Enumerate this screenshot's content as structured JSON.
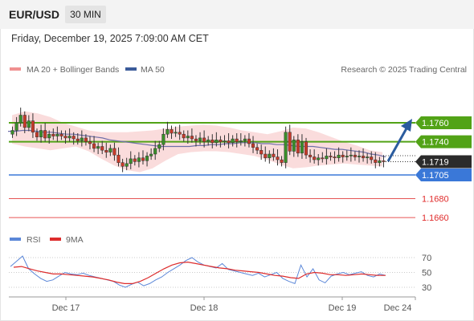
{
  "header": {
    "symbol": "EUR/USD",
    "interval": "30 MIN"
  },
  "datetime": "Friday, December 19, 2025 7:09:00 AM CET",
  "legend": {
    "ma20_label": "MA 20 + Bollinger Bands",
    "ma50_label": "MA 50",
    "copyright": "Research © 2025 Trading Central",
    "rsi_label": "RSI",
    "rsi_ma_label": "9MA"
  },
  "colors": {
    "resistance": "#52a317",
    "support": "#3a78d8",
    "target_low": "#e02b2b",
    "arrow": "#2b5c9e",
    "bollinger": "#f7c9c9",
    "ma50": "#6f6fa8",
    "candle_up": "#3a8f2a",
    "candle_down": "#c93a2a",
    "rsi": "#5b87d8",
    "rsi_ma": "#dd2c2c"
  },
  "price_levels": [
    {
      "label": "1.1760",
      "value": 1.176,
      "kind": "resistance"
    },
    {
      "label": "1.1740",
      "value": 1.174,
      "kind": "resistance"
    },
    {
      "label": "1.1719",
      "value": 1.1719,
      "kind": "current"
    },
    {
      "label": "1.1705",
      "value": 1.1705,
      "kind": "support"
    },
    {
      "label": "1.1680",
      "value": 1.168,
      "kind": "target"
    },
    {
      "label": "1.1660",
      "value": 1.166,
      "kind": "target"
    }
  ],
  "rsi_levels": [
    "70",
    "50",
    "30"
  ],
  "x_axis": [
    "Dec 17",
    "Dec 18",
    "Dec 19",
    "Dec 24"
  ],
  "chart_data": {
    "type": "candlestick",
    "close": [
      1.1752,
      1.176,
      1.1768,
      1.1755,
      1.1762,
      1.175,
      1.1745,
      1.1752,
      1.1744,
      1.1748,
      1.1746,
      1.1748,
      1.1746,
      1.1744,
      1.1746,
      1.1743,
      1.1741,
      1.1744,
      1.174,
      1.1738,
      1.1733,
      1.1735,
      1.1731,
      1.1729,
      1.1733,
      1.1726,
      1.1718,
      1.1714,
      1.1717,
      1.1722,
      1.1719,
      1.1723,
      1.172,
      1.1725,
      1.1727,
      1.1733,
      1.1737,
      1.1748,
      1.1753,
      1.1749,
      1.175,
      1.1748,
      1.1744,
      1.1746,
      1.1743,
      1.1741,
      1.1744,
      1.174,
      1.1742,
      1.1739,
      1.1742,
      1.174,
      1.1741,
      1.1739,
      1.1743,
      1.174,
      1.1741,
      1.1743,
      1.1738,
      1.1734,
      1.1731,
      1.1727,
      1.1723,
      1.1727,
      1.1724,
      1.1721,
      1.1718,
      1.175,
      1.173,
      1.1742,
      1.1728,
      1.174,
      1.1726,
      1.1724,
      1.1721,
      1.1723,
      1.1722,
      1.1725,
      1.1724,
      1.1723,
      1.1726,
      1.1724,
      1.1725,
      1.1726,
      1.1724,
      1.1725,
      1.1723,
      1.1724,
      1.1721,
      1.1718,
      1.172,
      1.1719
    ],
    "ma50": [
      1.1751,
      1.1751,
      1.1752,
      1.1752,
      1.1751,
      1.175,
      1.175,
      1.1749,
      1.1748,
      1.1748,
      1.1747,
      1.1746,
      1.1745,
      1.1744,
      1.1742,
      1.1741,
      1.174,
      1.1739,
      1.1738,
      1.1737,
      1.1736,
      1.1735,
      1.1735,
      1.1735,
      1.1735,
      1.1735,
      1.1736,
      1.1736,
      1.1737,
      1.1737,
      1.1738,
      1.1738,
      1.1739,
      1.1739,
      1.1739,
      1.1738,
      1.1738,
      1.1737,
      1.1737,
      1.1736,
      1.1735,
      1.1735,
      1.1735,
      1.1734,
      1.1733,
      1.1732,
      1.1732,
      1.1731,
      1.173,
      1.1729,
      1.1727,
      1.1726,
      1.1724
    ],
    "bollinger_upper": [
      1.1768,
      1.1772,
      1.177,
      1.1766,
      1.176,
      1.1756,
      1.1752,
      1.175,
      1.175,
      1.175,
      1.1751,
      1.1752,
      1.1754,
      1.1756,
      1.1757,
      1.1758,
      1.1757,
      1.1755,
      1.1752,
      1.175,
      1.1748,
      1.1751,
      1.1755,
      1.1754,
      1.175,
      1.1745,
      1.174,
      1.1736,
      1.1731,
      1.1729
    ],
    "bollinger_lower": [
      1.1738,
      1.1735,
      1.1733,
      1.1731,
      1.1733,
      1.1735,
      1.173,
      1.1722,
      1.1715,
      1.171,
      1.1708,
      1.1712,
      1.172,
      1.1727,
      1.1729,
      1.173,
      1.173,
      1.1729,
      1.1727,
      1.1725,
      1.1721,
      1.1716,
      1.1712,
      1.1713,
      1.1715,
      1.1716,
      1.1717,
      1.1716,
      1.1715,
      1.1714
    ],
    "rsi": [
      58,
      65,
      72,
      55,
      48,
      42,
      38,
      40,
      45,
      50,
      48,
      47,
      49,
      46,
      44,
      42,
      40,
      38,
      33,
      30,
      34,
      37,
      32,
      35,
      40,
      44,
      50,
      55,
      60,
      66,
      70,
      64,
      60,
      58,
      56,
      62,
      54,
      52,
      50,
      48,
      46,
      49,
      44,
      47,
      50,
      42,
      38,
      35,
      60,
      44,
      55,
      40,
      36,
      45,
      48,
      50,
      47,
      49,
      51,
      46,
      44,
      48,
      46
    ],
    "rsi_ma": [
      57,
      58,
      55,
      52,
      50,
      48,
      48,
      47,
      46,
      45,
      44,
      42,
      40,
      37,
      35,
      35,
      38,
      43,
      49,
      55,
      60,
      63,
      64,
      62,
      60,
      58,
      56,
      55,
      53,
      52,
      51,
      50,
      48,
      46,
      45,
      43,
      42,
      48,
      50,
      49,
      47,
      47,
      46,
      47,
      48,
      47,
      46,
      46
    ]
  }
}
